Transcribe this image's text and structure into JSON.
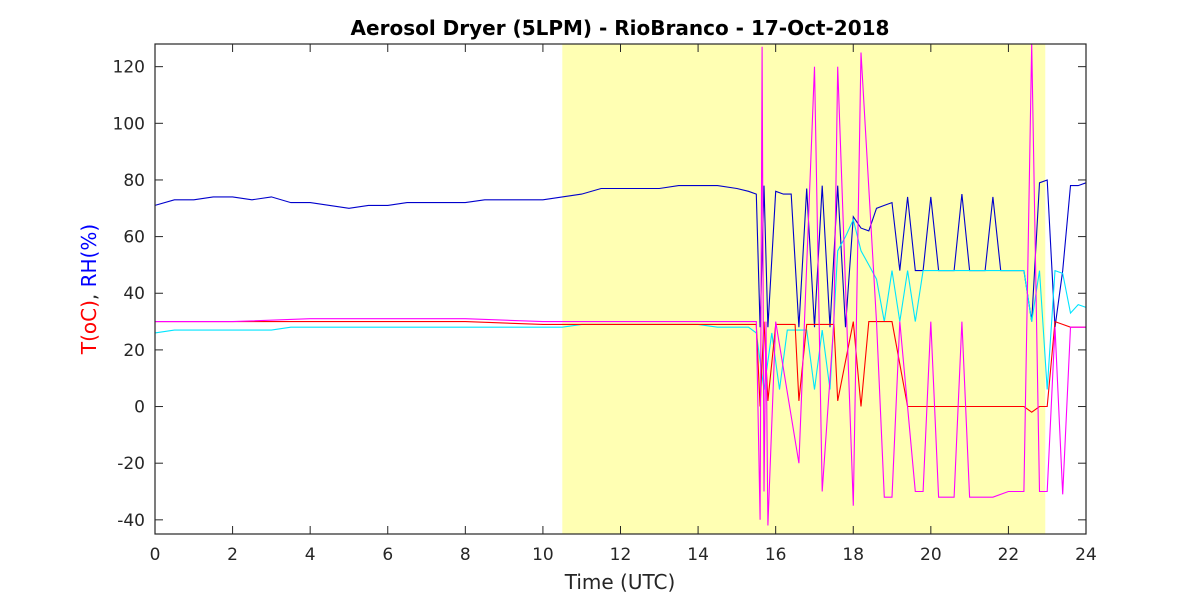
{
  "chart_data": {
    "type": "line",
    "title": "Aerosol Dryer (5LPM) - RioBranco - 17-Oct-2018",
    "xlabel": "Time (UTC)",
    "ylabel_parts": [
      {
        "text": "T(oC)",
        "color": "#ff0000"
      },
      {
        "text": ", ",
        "color": "#262626"
      },
      {
        "text": "RH(%)",
        "color": "#0000ff"
      }
    ],
    "xlim": [
      0,
      24
    ],
    "ylim": [
      -45,
      128
    ],
    "xticks": [
      0,
      2,
      4,
      6,
      8,
      10,
      12,
      14,
      16,
      18,
      20,
      22,
      24
    ],
    "yticks": [
      -40,
      -20,
      0,
      20,
      40,
      60,
      80,
      100,
      120
    ],
    "highlight": {
      "x_start": 10.5,
      "x_end": 22.95,
      "color": "#ffffb3"
    },
    "grid": false,
    "series": [
      {
        "color": "#0000cc",
        "x": [
          0,
          0.5,
          1,
          1.5,
          2,
          2.5,
          3,
          3.5,
          4,
          4.5,
          5,
          5.5,
          6,
          6.5,
          7,
          7.5,
          8,
          8.5,
          9,
          9.5,
          10,
          10.5,
          11,
          11.5,
          12,
          12.5,
          13,
          13.5,
          14,
          14.5,
          15,
          15.3,
          15.5,
          15.6,
          15.7,
          15.8,
          16,
          16.2,
          16.4,
          16.6,
          16.8,
          17,
          17.2,
          17.4,
          17.6,
          17.8,
          18,
          18.2,
          18.4,
          18.6,
          18.8,
          19,
          19.2,
          19.4,
          19.6,
          19.8,
          20,
          20.2,
          20.4,
          20.6,
          20.8,
          21,
          21.2,
          21.4,
          21.6,
          21.8,
          22,
          22.2,
          22.4,
          22.6,
          22.8,
          23,
          23.2,
          23.4,
          23.6,
          23.8,
          24
        ],
        "y": [
          71,
          73,
          73,
          74,
          74,
          73,
          74,
          72,
          72,
          71,
          70,
          71,
          71,
          72,
          72,
          72,
          72,
          73,
          73,
          73,
          73,
          74,
          75,
          77,
          77,
          77,
          77,
          78,
          78,
          78,
          77,
          76,
          75,
          28,
          78,
          28,
          76,
          75,
          75,
          28,
          77,
          28,
          78,
          28,
          78,
          28,
          67,
          63,
          62,
          70,
          71,
          72,
          48,
          74,
          48,
          48,
          74,
          48,
          48,
          48,
          75,
          48,
          48,
          48,
          74,
          48,
          48,
          48,
          48,
          30,
          79,
          80,
          28,
          48,
          78,
          78,
          79
        ]
      },
      {
        "color": "#00e5ff",
        "x": [
          0,
          0.5,
          1,
          1.5,
          2,
          2.5,
          3,
          3.5,
          4,
          4.5,
          5,
          5.5,
          6,
          6.5,
          7,
          7.5,
          8,
          8.5,
          9,
          9.5,
          10,
          10.5,
          11,
          11.5,
          12,
          12.5,
          13,
          13.5,
          14,
          14.5,
          15,
          15.3,
          15.5,
          15.7,
          15.9,
          16.1,
          16.3,
          16.5,
          16.8,
          17,
          17.2,
          17.4,
          17.6,
          17.8,
          18,
          18.2,
          18.4,
          18.6,
          18.8,
          19,
          19.2,
          19.4,
          19.6,
          19.8,
          20,
          20.4,
          20.8,
          21.2,
          21.6,
          22,
          22.4,
          22.6,
          22.8,
          23,
          23.2,
          23.4,
          23.6,
          23.8,
          24
        ],
        "y": [
          26,
          27,
          27,
          27,
          27,
          27,
          27,
          28,
          28,
          28,
          28,
          28,
          28,
          28,
          28,
          28,
          28,
          28,
          28,
          28,
          28,
          28,
          29,
          29,
          29,
          29,
          29,
          29,
          29,
          28,
          28,
          28,
          26,
          6,
          26,
          6,
          27,
          27,
          27,
          6,
          27,
          6,
          55,
          60,
          66,
          55,
          50,
          45,
          30,
          48,
          30,
          48,
          30,
          48,
          48,
          48,
          48,
          48,
          48,
          48,
          48,
          30,
          48,
          6,
          48,
          47,
          33,
          36,
          35
        ]
      },
      {
        "color": "#ff0000",
        "x": [
          0,
          2,
          4,
          6,
          8,
          10,
          12,
          14,
          15,
          15.5,
          15.6,
          15.7,
          15.8,
          16,
          16.5,
          16.6,
          16.8,
          17,
          17.5,
          17.6,
          18,
          18.2,
          18.4,
          19,
          19.4,
          20,
          21,
          21.4,
          22,
          22.4,
          22.6,
          22.8,
          23,
          23.2,
          23.4,
          23.6,
          24
        ],
        "y": [
          30,
          30,
          30,
          30,
          30,
          29,
          29,
          29,
          29,
          29,
          0,
          30,
          2,
          29,
          29,
          2,
          29,
          29,
          29,
          2,
          30,
          0,
          30,
          30,
          0,
          0,
          0,
          0,
          0,
          0,
          -2,
          0,
          0,
          30,
          29,
          28,
          28
        ]
      },
      {
        "color": "#ff00ff",
        "x": [
          0,
          2,
          4,
          6,
          8,
          10,
          12,
          14,
          15,
          15.5,
          15.6,
          15.65,
          15.7,
          15.75,
          15.8,
          16,
          16.6,
          17,
          17.2,
          17.5,
          17.6,
          18,
          18.2,
          18.6,
          18.8,
          19,
          19.2,
          19.6,
          19.8,
          20,
          20.2,
          20.6,
          20.8,
          21,
          21.2,
          21.6,
          22,
          22.4,
          22.6,
          22.8,
          23,
          23.2,
          23.4,
          23.6,
          24
        ],
        "y": [
          30,
          30,
          31,
          31,
          31,
          30,
          30,
          30,
          30,
          30,
          -40,
          127,
          -30,
          30,
          -42,
          30,
          -20,
          120,
          -30,
          30,
          120,
          -35,
          125,
          30,
          -32,
          -32,
          30,
          -30,
          -30,
          30,
          -32,
          -32,
          30,
          -32,
          -32,
          -32,
          -30,
          -30,
          128,
          -30,
          -30,
          28,
          -31,
          28,
          28
        ]
      }
    ]
  }
}
